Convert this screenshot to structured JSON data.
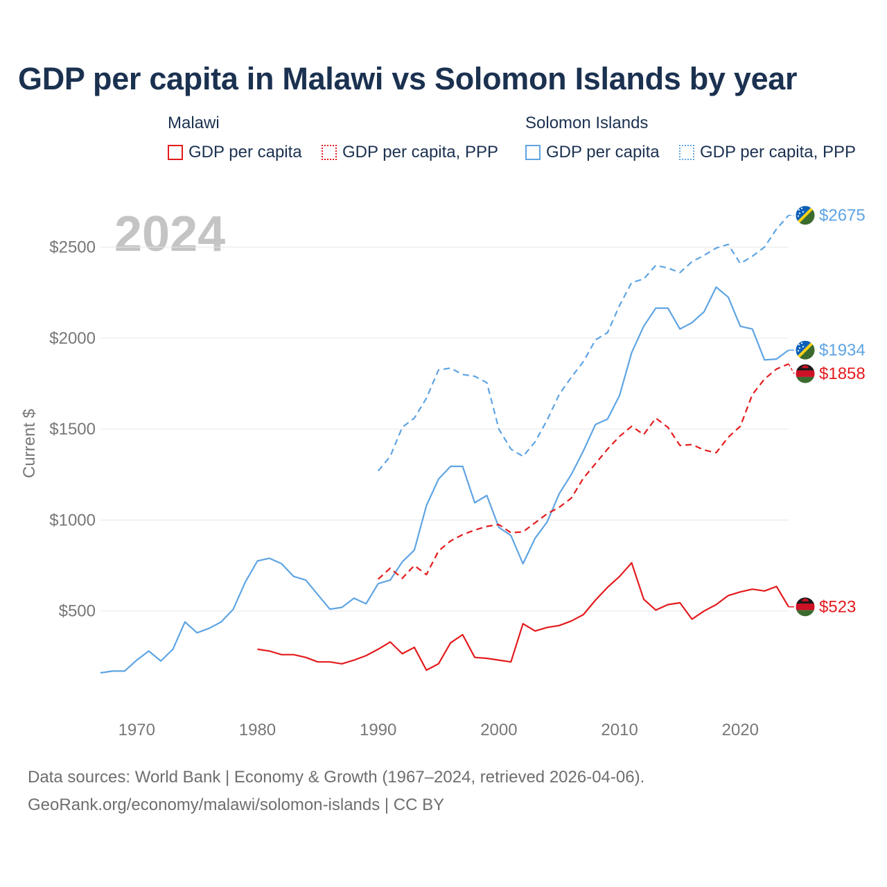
{
  "title": "GDP per capita in Malawi vs Solomon Islands by year",
  "legend": {
    "groups": [
      {
        "name": "Malawi",
        "color": "#e41a1c",
        "items": [
          {
            "label": "GDP per capita",
            "style": "solid"
          },
          {
            "label": "GDP per capita, PPP",
            "style": "dotted"
          }
        ]
      },
      {
        "name": "Solomon Islands",
        "color": "#5ea4e3",
        "items": [
          {
            "label": "GDP per capita",
            "style": "solid"
          },
          {
            "label": "GDP per capita, PPP",
            "style": "dotted"
          }
        ]
      }
    ]
  },
  "year_watermark": "2024",
  "chart_data": {
    "type": "line",
    "title": "GDP per capita in Malawi vs Solomon Islands by year",
    "xlabel": "",
    "ylabel": "Current $",
    "xlim": [
      1967,
      2024
    ],
    "ylim": [
      0,
      2750
    ],
    "xticks": [
      1970,
      1980,
      1990,
      2000,
      2010,
      2020
    ],
    "xtick_labels": [
      "1970",
      "1980",
      "1990",
      "2000",
      "2010",
      "2020"
    ],
    "yticks": [
      500,
      1000,
      1500,
      2000,
      2500
    ],
    "ytick_labels": [
      "$500",
      "$1000",
      "$1500",
      "$2000",
      "$2500"
    ],
    "grid": true,
    "series": [
      {
        "name": "Solomon Islands GDP per capita, PPP",
        "country": "Solomon Islands",
        "color": "#5ea4e3",
        "dash": "dashed",
        "end_label": "$2675",
        "flag": "solomon-islands",
        "x": [
          1990,
          1991,
          1992,
          1993,
          1994,
          1995,
          1996,
          1997,
          1998,
          1999,
          2000,
          2001,
          2002,
          2003,
          2004,
          2005,
          2006,
          2007,
          2008,
          2009,
          2010,
          2011,
          2012,
          2013,
          2014,
          2015,
          2016,
          2017,
          2018,
          2019,
          2020,
          2021,
          2022,
          2023,
          2024
        ],
        "values": [
          1270,
          1350,
          1510,
          1560,
          1670,
          1825,
          1835,
          1800,
          1790,
          1755,
          1500,
          1390,
          1350,
          1430,
          1550,
          1690,
          1785,
          1870,
          1990,
          2030,
          2180,
          2305,
          2325,
          2400,
          2385,
          2360,
          2420,
          2455,
          2495,
          2515,
          2410,
          2450,
          2500,
          2600,
          2675
        ]
      },
      {
        "name": "Solomon Islands GDP per capita",
        "country": "Solomon Islands",
        "color": "#5ea4e3",
        "dash": "solid",
        "end_label": "$1934",
        "flag": "solomon-islands",
        "x": [
          1967,
          1968,
          1969,
          1970,
          1971,
          1972,
          1973,
          1974,
          1975,
          1976,
          1977,
          1978,
          1979,
          1980,
          1981,
          1982,
          1983,
          1984,
          1985,
          1986,
          1987,
          1988,
          1989,
          1990,
          1991,
          1992,
          1993,
          1994,
          1995,
          1996,
          1997,
          1998,
          1999,
          2000,
          2001,
          2002,
          2003,
          2004,
          2005,
          2006,
          2007,
          2008,
          2009,
          2010,
          2011,
          2012,
          2013,
          2014,
          2015,
          2016,
          2017,
          2018,
          2019,
          2020,
          2021,
          2022,
          2023,
          2024
        ],
        "values": [
          160,
          170,
          170,
          230,
          280,
          225,
          290,
          440,
          380,
          405,
          440,
          510,
          660,
          775,
          790,
          760,
          690,
          670,
          590,
          510,
          520,
          570,
          540,
          650,
          670,
          770,
          835,
          1080,
          1225,
          1295,
          1295,
          1095,
          1135,
          960,
          915,
          760,
          900,
          990,
          1145,
          1250,
          1380,
          1525,
          1555,
          1685,
          1920,
          2065,
          2165,
          2165,
          2050,
          2085,
          2145,
          2280,
          2225,
          2065,
          2050,
          1880,
          1885,
          1934
        ]
      },
      {
        "name": "Malawi GDP per capita, PPP",
        "country": "Malawi",
        "color": "#e41a1c",
        "dash": "dashed",
        "end_label": "$1858",
        "flag": "malawi",
        "x": [
          1990,
          1991,
          1992,
          1993,
          1994,
          1995,
          1996,
          1997,
          1998,
          1999,
          2000,
          2001,
          2002,
          2003,
          2004,
          2005,
          2006,
          2007,
          2008,
          2009,
          2010,
          2011,
          2012,
          2013,
          2014,
          2015,
          2016,
          2017,
          2018,
          2019,
          2020,
          2021,
          2022,
          2023,
          2024
        ],
        "values": [
          675,
          735,
          680,
          750,
          700,
          830,
          885,
          920,
          945,
          965,
          975,
          930,
          935,
          985,
          1035,
          1070,
          1120,
          1230,
          1310,
          1390,
          1460,
          1515,
          1470,
          1560,
          1510,
          1410,
          1415,
          1385,
          1370,
          1455,
          1515,
          1690,
          1775,
          1830,
          1858
        ]
      },
      {
        "name": "Malawi GDP per capita",
        "country": "Malawi",
        "color": "#e41a1c",
        "dash": "solid",
        "end_label": "$523",
        "flag": "malawi",
        "x": [
          1980,
          1981,
          1982,
          1983,
          1984,
          1985,
          1986,
          1987,
          1988,
          1989,
          1990,
          1991,
          1992,
          1993,
          1994,
          1995,
          1996,
          1997,
          1998,
          1999,
          2000,
          2001,
          2002,
          2003,
          2004,
          2005,
          2006,
          2007,
          2008,
          2009,
          2010,
          2011,
          2012,
          2013,
          2014,
          2015,
          2016,
          2017,
          2018,
          2019,
          2020,
          2021,
          2022,
          2023,
          2024
        ],
        "values": [
          290,
          280,
          260,
          260,
          245,
          220,
          220,
          210,
          230,
          255,
          290,
          330,
          265,
          300,
          175,
          210,
          325,
          370,
          245,
          240,
          230,
          220,
          430,
          390,
          410,
          420,
          445,
          480,
          560,
          630,
          690,
          765,
          565,
          505,
          535,
          545,
          455,
          500,
          535,
          585,
          605,
          620,
          610,
          635,
          523
        ]
      }
    ]
  },
  "footer": {
    "line1": "Data sources: World Bank | Economy & Growth (1967–2024, retrieved 2026-04-06).",
    "line2": "GeoRank.org/economy/malawi/solomon-islands | CC BY"
  }
}
